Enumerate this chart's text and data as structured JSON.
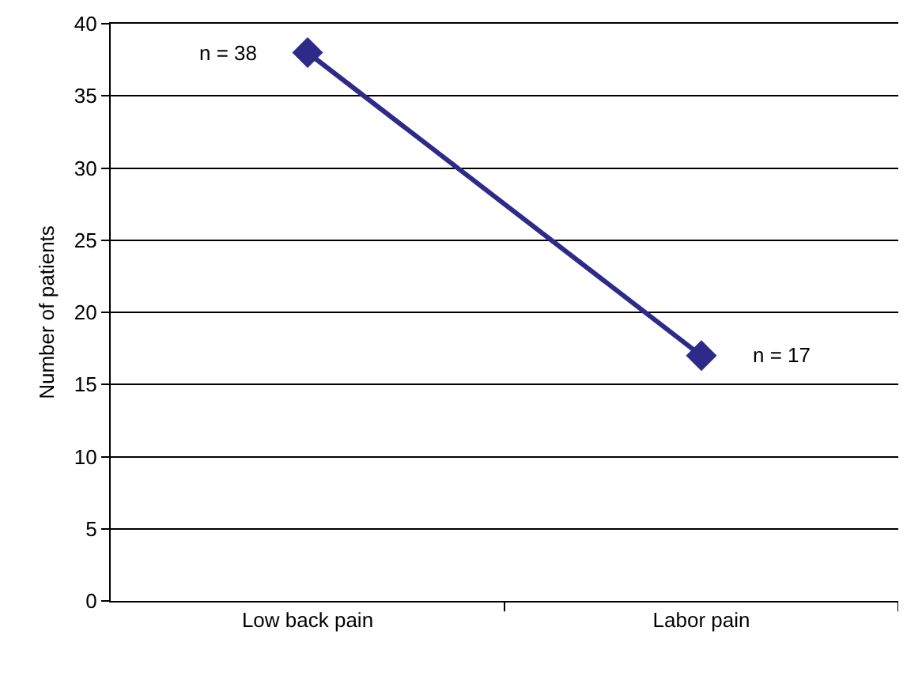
{
  "chart_data": {
    "type": "line",
    "ylabel": "Number of patients",
    "categories": [
      "Low back pain",
      "Labor pain"
    ],
    "series": [
      {
        "color": "#2e2a8a",
        "values": [
          38,
          17
        ]
      }
    ],
    "ylim": [
      0,
      40
    ],
    "yticks": [
      0,
      5,
      10,
      15,
      20,
      25,
      30,
      35,
      40
    ],
    "grid": "y",
    "marker": "diamond",
    "line_style": "solid",
    "annotations": [
      {
        "text": "n = 38",
        "x": "Low back pain",
        "y": 38
      },
      {
        "text": "n = 17",
        "x": "Labor pain",
        "y": 17
      }
    ]
  }
}
